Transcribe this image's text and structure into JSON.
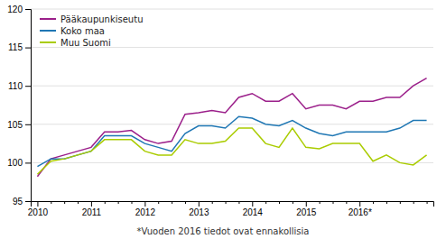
{
  "chart_data": {
    "type": "line",
    "annotations": [
      "*Vuoden 2016 tiedot ovat ennakollisia"
    ],
    "categories": [
      "2010",
      null,
      null,
      null,
      "2011",
      null,
      null,
      null,
      "2012",
      null,
      null,
      null,
      "2013",
      null,
      null,
      null,
      "2014",
      null,
      null,
      null,
      "2015",
      null,
      null,
      null,
      "2016*",
      null,
      null,
      null,
      null,
      null
    ],
    "series": [
      {
        "name": "Pääkaupunkiseutu",
        "color": "#9B1F8A",
        "values": [
          98.2,
          100.5,
          101.0,
          101.5,
          102.0,
          104.0,
          104.0,
          104.2,
          103.0,
          102.5,
          102.8,
          106.3,
          106.5,
          106.8,
          106.5,
          108.5,
          109.0,
          108.0,
          108.0,
          109.0,
          107.0,
          107.5,
          107.5,
          107.0,
          108.0,
          108.0,
          108.5,
          108.5,
          110.0,
          111.0
        ]
      },
      {
        "name": "Koko maa",
        "color": "#1F77B4",
        "values": [
          99.5,
          100.5,
          100.5,
          101.0,
          101.5,
          103.5,
          103.5,
          103.5,
          102.5,
          102.0,
          101.5,
          103.8,
          104.8,
          104.8,
          104.5,
          106.0,
          105.8,
          105.0,
          104.8,
          105.5,
          104.5,
          103.8,
          103.5,
          104.0,
          104.0,
          104.0,
          104.0,
          104.5,
          105.5,
          105.5
        ]
      },
      {
        "name": "Muu Suomi",
        "color": "#AACC00",
        "values": [
          98.5,
          100.2,
          100.5,
          101.0,
          101.5,
          103.0,
          103.0,
          103.0,
          101.5,
          101.0,
          101.0,
          103.0,
          102.5,
          102.5,
          102.8,
          104.5,
          104.5,
          102.5,
          102.0,
          104.5,
          102.0,
          101.8,
          102.5,
          102.5,
          102.5,
          100.2,
          101.0,
          100.0,
          99.7,
          101.0
        ]
      }
    ],
    "ylim": [
      95,
      120
    ],
    "yticks": [
      95,
      100,
      105,
      110,
      115,
      120
    ],
    "grid": true,
    "legend": "upper-left"
  }
}
